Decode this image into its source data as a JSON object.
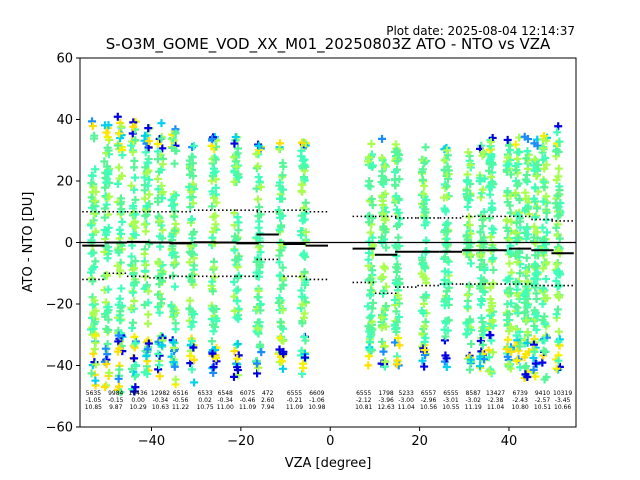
{
  "header": {
    "plot_date": "Plot date: 2025-08-04 12:14:37",
    "title": "S-O3M_GOME_VOD_XX_M01_20250803Z ATO - NTO vs VZA"
  },
  "chart_data": {
    "type": "scatter",
    "title": "S-O3M_GOME_VOD_XX_M01_20250803Z ATO - NTO vs VZA",
    "xlabel": "VZA [degree]",
    "ylabel": "ATO - NTO [DU]",
    "xlim": [
      -56,
      55
    ],
    "ylim": [
      -60,
      60
    ],
    "xticks": [
      -40,
      -20,
      0,
      20,
      40
    ],
    "yticks": [
      -60,
      -40,
      -20,
      0,
      20,
      40,
      60
    ],
    "grid": false,
    "scatter_colors": [
      "#58f598",
      "#40ffb8",
      "#a8ff50",
      "#ffe000",
      "#f8f000",
      "#00d0f0",
      "#1a8cff",
      "#0000e0"
    ],
    "column_x": [
      -53,
      -50,
      -47,
      -44,
      -41,
      -38,
      -35,
      -31,
      -26,
      -21,
      -16,
      -11,
      -6,
      9,
      12,
      15,
      21,
      26,
      31,
      34,
      36,
      40,
      42,
      44,
      46,
      48,
      51
    ],
    "column_spread": [
      46,
      43,
      44,
      44,
      43,
      42,
      42,
      40,
      40,
      40,
      38,
      38,
      38,
      36,
      36,
      36,
      36,
      36,
      36,
      36,
      38,
      38,
      38,
      40,
      40,
      40,
      40
    ],
    "bins": [
      {
        "vza": -53.0,
        "n": "5635",
        "mean": "-1.05",
        "std": "10.85",
        "median": -1.0,
        "p_hi": 10.0,
        "p_lo": -12.0
      },
      {
        "vza": -48.0,
        "n": "9984",
        "mean": "-0.15",
        "std": "9.87",
        "median": 0.0,
        "p_hi": 10.0,
        "p_lo": -10.0
      },
      {
        "vza": -43.0,
        "n": "10436",
        "mean": "0.00",
        "std": "10.29",
        "median": 0.2,
        "p_hi": 10.0,
        "p_lo": -11.0
      },
      {
        "vza": -38.0,
        "n": "12982",
        "mean": "-0.34",
        "std": "10.63",
        "median": 0.0,
        "p_hi": 10.0,
        "p_lo": -11.5
      },
      {
        "vza": -33.5,
        "n": "6516",
        "mean": "-0.56",
        "std": "11.22",
        "median": -0.3,
        "p_hi": 10.0,
        "p_lo": -11.0
      },
      {
        "vza": -28.0,
        "n": "6533",
        "mean": "0.02",
        "std": "10.75",
        "median": 0.1,
        "p_hi": 10.5,
        "p_lo": -11.0
      },
      {
        "vza": -23.5,
        "n": "6548",
        "mean": "-0.34",
        "std": "11.00",
        "median": 0.0,
        "p_hi": 10.5,
        "p_lo": -11.0
      },
      {
        "vza": -18.5,
        "n": "6075",
        "mean": "-0.46",
        "std": "11.09",
        "median": -0.3,
        "p_hi": 10.5,
        "p_lo": -11.0
      },
      {
        "vza": -14.0,
        "n": "472",
        "mean": "2.60",
        "std": "7.94",
        "median": 2.6,
        "p_hi": 10.0,
        "p_lo": -5.5
      },
      {
        "vza": -8.0,
        "n": "6555",
        "mean": "-0.21",
        "std": "11.09",
        "median": -0.5,
        "p_hi": 10.5,
        "p_lo": -11.0
      },
      {
        "vza": -3.0,
        "n": "6609",
        "mean": "-1.06",
        "std": "10.98",
        "median": -1.0,
        "p_hi": 10.0,
        "p_lo": -12.0
      },
      {
        "vza": 7.5,
        "n": "6555",
        "mean": "-2.12",
        "std": "10.81",
        "median": -2.0,
        "p_hi": 8.5,
        "p_lo": -13.0
      },
      {
        "vza": 12.5,
        "n": "1798",
        "mean": "-3.96",
        "std": "12.63",
        "median": -4.0,
        "p_hi": 8.5,
        "p_lo": -16.5
      },
      {
        "vza": 17.0,
        "n": "5233",
        "mean": "-3.00",
        "std": "11.04",
        "median": -3.0,
        "p_hi": 8.0,
        "p_lo": -14.5
      },
      {
        "vza": 22.0,
        "n": "6557",
        "mean": "-2.96",
        "std": "10.56",
        "median": -3.0,
        "p_hi": 8.0,
        "p_lo": -14.0
      },
      {
        "vza": 27.0,
        "n": "6555",
        "mean": "-3.01",
        "std": "10.55",
        "median": -3.0,
        "p_hi": 8.0,
        "p_lo": -13.5
      },
      {
        "vza": 32.0,
        "n": "8587",
        "mean": "-3.02",
        "std": "11.19",
        "median": -2.5,
        "p_hi": 8.5,
        "p_lo": -13.5
      },
      {
        "vza": 37.0,
        "n": "13427",
        "mean": "-2.38",
        "std": "11.04",
        "median": -2.5,
        "p_hi": 8.5,
        "p_lo": -13.5
      },
      {
        "vza": 42.5,
        "n": "6739",
        "mean": "-2.43",
        "std": "10.80",
        "median": -2.0,
        "p_hi": 8.5,
        "p_lo": -13.5
      },
      {
        "vza": 47.5,
        "n": "9410",
        "mean": "-2.57",
        "std": "10.51",
        "median": -2.5,
        "p_hi": 7.5,
        "p_lo": -14.0
      },
      {
        "vza": 52.0,
        "n": "10319",
        "mean": "-3.45",
        "std": "10.66",
        "median": -3.5,
        "p_hi": 7.0,
        "p_lo": -14.0
      }
    ]
  }
}
